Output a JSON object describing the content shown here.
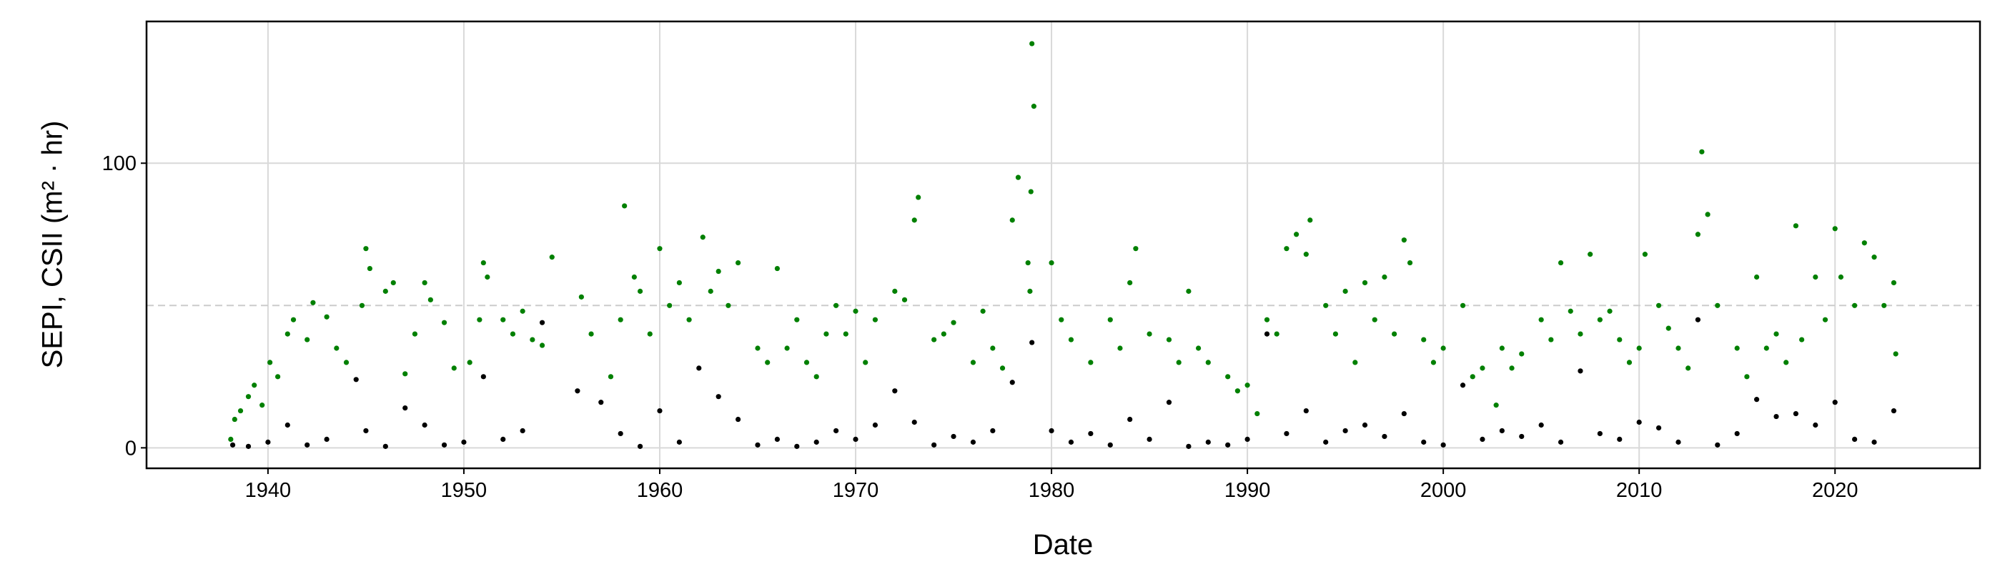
{
  "chart_data": {
    "type": "scatter",
    "xlabel": "Date",
    "ylabel": "SEPI, CSII (m² · hr)",
    "xlim": [
      1933.8,
      2027.4
    ],
    "ylim": [
      -7.2,
      149.8
    ],
    "xticks": [
      1940,
      1950,
      1960,
      1970,
      1980,
      1990,
      2000,
      2010,
      2020
    ],
    "yticks": [
      0,
      100
    ],
    "grid": true,
    "reference_line": 50,
    "series": [
      {
        "color": "#008000",
        "x": [
          1938.1,
          1938.3,
          1938.6,
          1939.0,
          1939.3,
          1939.7,
          1940.1,
          1940.5,
          1941.0,
          1941.3,
          1942.0,
          1942.3,
          1943.0,
          1943.5,
          1944.0,
          1944.8,
          1945.0,
          1945.2,
          1946.0,
          1946.4,
          1947.0,
          1947.5,
          1948.0,
          1948.3,
          1949.0,
          1949.5,
          1950.3,
          1950.8,
          1951.0,
          1951.2,
          1952.0,
          1952.5,
          1953.0,
          1953.5,
          1954.0,
          1954.5,
          1956.0,
          1956.5,
          1957.5,
          1958.0,
          1958.2,
          1958.7,
          1959.0,
          1959.5,
          1960.0,
          1960.5,
          1961.0,
          1961.5,
          1962.2,
          1962.6,
          1963.0,
          1963.5,
          1964.0,
          1965.0,
          1965.5,
          1966.0,
          1966.5,
          1967.0,
          1967.5,
          1968.0,
          1968.5,
          1969.0,
          1969.5,
          1970.0,
          1970.5,
          1971.0,
          1972.0,
          1972.5,
          1973.0,
          1973.2,
          1974.0,
          1974.5,
          1975.0,
          1976.0,
          1976.5,
          1977.0,
          1977.5,
          1978.0,
          1978.3,
          1978.8,
          1979.0,
          1979.1,
          1978.95,
          1978.9,
          1980.0,
          1980.5,
          1981.0,
          1982.0,
          1983.0,
          1983.5,
          1984.0,
          1984.3,
          1985.0,
          1986.0,
          1986.5,
          1987.0,
          1987.5,
          1988.0,
          1989.0,
          1989.5,
          1990.0,
          1990.5,
          1991.0,
          1991.5,
          1992.0,
          1992.5,
          1993.0,
          1993.2,
          1994.0,
          1994.5,
          1995.0,
          1995.5,
          1996.0,
          1996.5,
          1997.0,
          1997.5,
          1998.0,
          1998.3,
          1999.0,
          1999.5,
          2000.0,
          2001.0,
          2001.5,
          2002.0,
          2002.7,
          2003.0,
          2003.5,
          2004.0,
          2005.0,
          2005.5,
          2006.0,
          2006.5,
          2007.0,
          2007.5,
          2008.0,
          2008.5,
          2009.0,
          2009.5,
          2010.0,
          2010.3,
          2011.0,
          2011.5,
          2012.0,
          2012.5,
          2013.0,
          2013.2,
          2013.5,
          2014.0,
          2015.0,
          2015.5,
          2016.0,
          2016.5,
          2017.0,
          2017.5,
          2018.0,
          2018.3,
          2019.0,
          2019.5,
          2020.0,
          2020.3,
          2021.0,
          2021.5,
          2022.0,
          2022.5,
          2023.0,
          2023.1
        ],
        "values": [
          3,
          10,
          13,
          18,
          22,
          15,
          30,
          25,
          40,
          45,
          38,
          51,
          46,
          35,
          30,
          50,
          70,
          63,
          55,
          58,
          26,
          40,
          58,
          52,
          44,
          28,
          30,
          45,
          65,
          60,
          45,
          40,
          48,
          38,
          36,
          67,
          53,
          40,
          25,
          45,
          85,
          60,
          55,
          40,
          70,
          50,
          58,
          45,
          74,
          55,
          62,
          50,
          65,
          35,
          30,
          63,
          35,
          45,
          30,
          25,
          40,
          50,
          40,
          48,
          30,
          45,
          55,
          52,
          80,
          88,
          38,
          40,
          44,
          30,
          48,
          35,
          28,
          80,
          95,
          65,
          142,
          120,
          90,
          55,
          65,
          45,
          38,
          30,
          45,
          35,
          58,
          70,
          40,
          38,
          30,
          55,
          35,
          30,
          25,
          20,
          22,
          12,
          45,
          40,
          70,
          75,
          68,
          80,
          50,
          40,
          55,
          30,
          58,
          45,
          60,
          40,
          73,
          65,
          38,
          30,
          35,
          50,
          25,
          28,
          15,
          35,
          28,
          33,
          45,
          38,
          65,
          48,
          40,
          68,
          45,
          48,
          38,
          30,
          35,
          68,
          50,
          42,
          35,
          28,
          75,
          104,
          82,
          50,
          35,
          25,
          60,
          35,
          40,
          30,
          78,
          38,
          60,
          45,
          77,
          60,
          50,
          72,
          67,
          50,
          58,
          33
        ]
      },
      {
        "color": "#000000",
        "x": [
          1938.2,
          1939,
          1940,
          1941,
          1942,
          1943,
          1944.5,
          1945,
          1946,
          1947,
          1948,
          1949,
          1950,
          1951,
          1952,
          1953,
          1954,
          1955.8,
          1957,
          1958,
          1959,
          1960,
          1961,
          1962,
          1963,
          1964,
          1965,
          1966,
          1967,
          1968,
          1969,
          1970,
          1971,
          1972,
          1973,
          1974,
          1975,
          1976,
          1977,
          1978,
          1979,
          1980,
          1981,
          1982,
          1983,
          1984,
          1985,
          1986,
          1987,
          1988,
          1989,
          1990,
          1991,
          1992,
          1993,
          1994,
          1995,
          1996,
          1997,
          1998,
          1999,
          2000,
          2001,
          2002,
          2003,
          2004,
          2005,
          2006,
          2007,
          2008,
          2009,
          2010,
          2011,
          2012,
          2013,
          2014,
          2015,
          2016,
          2017,
          2018,
          2019,
          2020,
          2021,
          2022,
          2023
        ],
        "values": [
          1,
          0.5,
          2,
          8,
          1,
          3,
          24,
          6,
          0.5,
          14,
          8,
          1,
          2,
          25,
          3,
          6,
          44,
          20,
          16,
          5,
          0.5,
          13,
          2,
          28,
          18,
          10,
          1,
          3,
          0.5,
          2,
          6,
          3,
          8,
          20,
          9,
          1,
          4,
          2,
          6,
          23,
          37,
          6,
          2,
          5,
          1,
          10,
          3,
          16,
          0.5,
          2,
          1,
          3,
          40,
          5,
          13,
          2,
          6,
          8,
          4,
          12,
          2,
          1,
          22,
          3,
          6,
          4,
          8,
          2,
          27,
          5,
          3,
          9,
          7,
          2,
          45,
          1,
          5,
          17,
          11,
          12,
          8,
          16,
          3,
          2,
          13
        ]
      }
    ]
  }
}
